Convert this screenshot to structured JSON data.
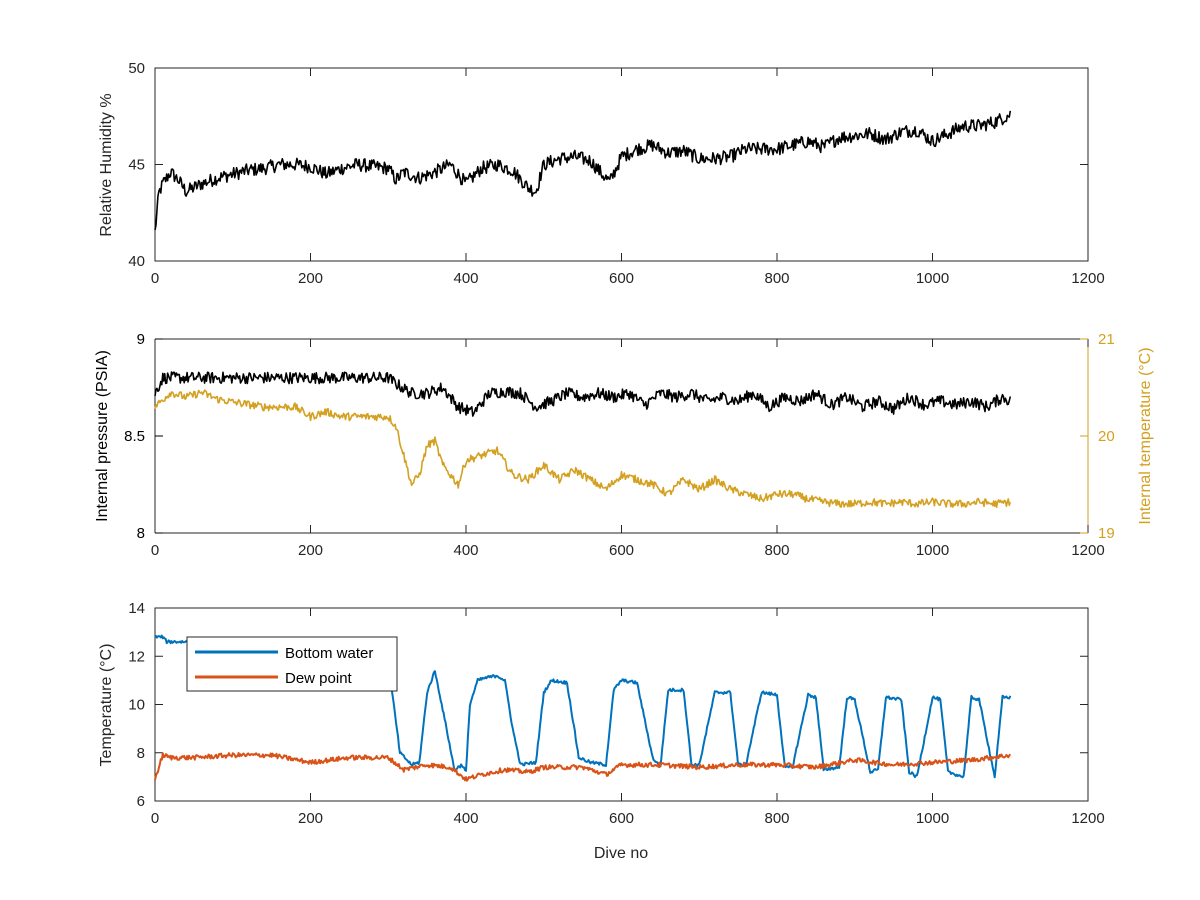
{
  "chart_data": [
    {
      "type": "line",
      "ylabel": "Relative Humidity %",
      "xlim": [
        0,
        1200
      ],
      "ylim": [
        40,
        50
      ],
      "xticks": [
        "0",
        "200",
        "400",
        "600",
        "800",
        "1000",
        "1200"
      ],
      "yticks": [
        "40",
        "45",
        "50"
      ],
      "series": [
        {
          "color": "#000000",
          "x": [
            0,
            5,
            10,
            20,
            30,
            40,
            60,
            80,
            100,
            120,
            140,
            160,
            180,
            200,
            220,
            240,
            260,
            280,
            300,
            310,
            320,
            340,
            360,
            380,
            400,
            420,
            440,
            460,
            480,
            490,
            500,
            520,
            540,
            560,
            575,
            585,
            600,
            620,
            640,
            660,
            680,
            700,
            720,
            740,
            760,
            780,
            800,
            820,
            840,
            860,
            880,
            900,
            920,
            940,
            960,
            980,
            1000,
            1020,
            1040,
            1060,
            1080,
            1100
          ],
          "y": [
            41.5,
            43.5,
            44,
            44.6,
            44.2,
            43.6,
            44,
            44.3,
            44.5,
            44.7,
            44.8,
            45,
            45,
            44.9,
            44.5,
            44.8,
            45,
            44.9,
            44.8,
            44.2,
            44.6,
            44.3,
            44.6,
            45,
            44,
            44.8,
            45,
            44.7,
            43.8,
            43.6,
            45,
            45.3,
            45.4,
            45.2,
            44.5,
            44.1,
            45.4,
            45.8,
            46,
            45.6,
            45.7,
            45.3,
            45.3,
            45.4,
            45.8,
            45.8,
            45.8,
            46,
            46.2,
            45.9,
            46.4,
            46.5,
            46.6,
            46.3,
            46.7,
            46.8,
            46.2,
            46.6,
            47,
            47,
            47.2,
            47.6
          ]
        }
      ]
    },
    {
      "type": "line",
      "ylabel": "Internal pressure (PSIA)",
      "y2label": "Internal temperature (°C)",
      "xlim": [
        0,
        1200
      ],
      "ylim": [
        8,
        9
      ],
      "y2lim": [
        19,
        21
      ],
      "xticks": [
        "0",
        "200",
        "400",
        "600",
        "800",
        "1000",
        "1200"
      ],
      "yticks": [
        "8",
        "8.5",
        "9"
      ],
      "y2ticks": [
        "19",
        "20",
        "21"
      ],
      "series": [
        {
          "axis": "left",
          "color": "#000000",
          "x": [
            0,
            10,
            300,
            310,
            330,
            350,
            370,
            390,
            410,
            430,
            450,
            470,
            490,
            510,
            530,
            550,
            570,
            590,
            610,
            630,
            650,
            670,
            690,
            710,
            730,
            750,
            770,
            790,
            810,
            830,
            850,
            870,
            890,
            910,
            930,
            950,
            970,
            990,
            1010,
            1030,
            1050,
            1070,
            1090,
            1100
          ],
          "y": [
            8.72,
            8.8,
            8.8,
            8.77,
            8.72,
            8.72,
            8.75,
            8.65,
            8.62,
            8.72,
            8.73,
            8.72,
            8.65,
            8.68,
            8.72,
            8.7,
            8.72,
            8.7,
            8.72,
            8.66,
            8.72,
            8.7,
            8.72,
            8.68,
            8.7,
            8.68,
            8.72,
            8.65,
            8.7,
            8.68,
            8.72,
            8.66,
            8.7,
            8.65,
            8.68,
            8.64,
            8.7,
            8.66,
            8.68,
            8.66,
            8.68,
            8.65,
            8.7,
            8.68
          ]
        },
        {
          "axis": "right",
          "color": "#D4A020",
          "x": [
            0,
            20,
            40,
            60,
            80,
            100,
            140,
            180,
            200,
            220,
            240,
            260,
            280,
            300,
            310,
            320,
            330,
            340,
            350,
            360,
            370,
            380,
            390,
            400,
            420,
            440,
            460,
            480,
            500,
            520,
            540,
            560,
            580,
            600,
            620,
            640,
            660,
            680,
            700,
            720,
            740,
            760,
            780,
            800,
            820,
            840,
            860,
            880,
            900,
            920,
            940,
            960,
            980,
            1000,
            1020,
            1040,
            1060,
            1080,
            1100
          ],
          "y": [
            20.3,
            20.45,
            20.4,
            20.45,
            20.38,
            20.35,
            20.3,
            20.3,
            20.2,
            20.25,
            20.2,
            20.2,
            20.2,
            20.2,
            20.1,
            19.8,
            19.5,
            19.6,
            19.9,
            19.95,
            19.7,
            19.6,
            19.5,
            19.75,
            19.8,
            19.85,
            19.6,
            19.55,
            19.7,
            19.55,
            19.65,
            19.55,
            19.45,
            19.6,
            19.55,
            19.5,
            19.4,
            19.55,
            19.45,
            19.55,
            19.45,
            19.4,
            19.35,
            19.4,
            19.4,
            19.35,
            19.32,
            19.3,
            19.3,
            19.32,
            19.3,
            19.32,
            19.3,
            19.32,
            19.3,
            19.3,
            19.32,
            19.3,
            19.32
          ]
        }
      ]
    },
    {
      "type": "line",
      "ylabel": "Temperature (°C)",
      "xlabel": "Dive no",
      "xlim": [
        0,
        1200
      ],
      "ylim": [
        6,
        14
      ],
      "xticks": [
        "0",
        "200",
        "400",
        "600",
        "800",
        "1000",
        "1200"
      ],
      "yticks": [
        "6",
        "8",
        "10",
        "12",
        "14"
      ],
      "legend_position": "top-left",
      "series": [
        {
          "name": "Bottom water",
          "color": "#0072BD",
          "x": [
            0,
            10,
            15,
            40,
            300,
            305,
            315,
            330,
            340,
            350,
            360,
            375,
            385,
            395,
            400,
            405,
            415,
            425,
            440,
            450,
            460,
            470,
            490,
            500,
            510,
            530,
            545,
            560,
            580,
            590,
            600,
            620,
            640,
            650,
            660,
            680,
            690,
            700,
            720,
            740,
            750,
            760,
            780,
            800,
            810,
            820,
            840,
            850,
            860,
            880,
            890,
            900,
            920,
            930,
            940,
            960,
            970,
            980,
            1000,
            1010,
            1020,
            1040,
            1050,
            1060,
            1080,
            1090,
            1100
          ],
          "y": [
            12.8,
            12.8,
            12.6,
            12.6,
            12.6,
            10.5,
            8,
            7.5,
            7.6,
            10.5,
            11.4,
            9,
            7.3,
            7.5,
            7.2,
            10,
            11,
            11.1,
            11.2,
            11,
            9,
            7.5,
            7.6,
            10.5,
            11,
            10.9,
            7.8,
            7.6,
            7.5,
            10.6,
            11,
            10.9,
            7.8,
            7.4,
            10.6,
            10.6,
            7.5,
            7.5,
            10.5,
            10.5,
            7.5,
            7.5,
            10.5,
            10.4,
            7.4,
            7.4,
            10.4,
            10.3,
            7.3,
            7.4,
            10.3,
            10.2,
            7.2,
            7.3,
            10.3,
            10.2,
            7.2,
            7,
            10.3,
            10.2,
            7.2,
            7,
            10.3,
            10.2,
            7,
            10.3,
            10.3
          ]
        },
        {
          "name": "Dew point",
          "color": "#D95319",
          "x": [
            0,
            10,
            20,
            50,
            100,
            150,
            200,
            250,
            300,
            320,
            350,
            380,
            400,
            420,
            450,
            480,
            500,
            550,
            580,
            600,
            650,
            700,
            750,
            800,
            850,
            900,
            950,
            1000,
            1050,
            1100
          ],
          "y": [
            6.9,
            7.9,
            7.8,
            7.8,
            7.9,
            7.9,
            7.6,
            7.8,
            7.8,
            7.3,
            7.5,
            7.4,
            6.9,
            7.1,
            7.3,
            7.2,
            7.4,
            7.4,
            7.1,
            7.5,
            7.5,
            7.4,
            7.5,
            7.5,
            7.4,
            7.7,
            7.5,
            7.6,
            7.7,
            7.9
          ]
        }
      ]
    }
  ]
}
